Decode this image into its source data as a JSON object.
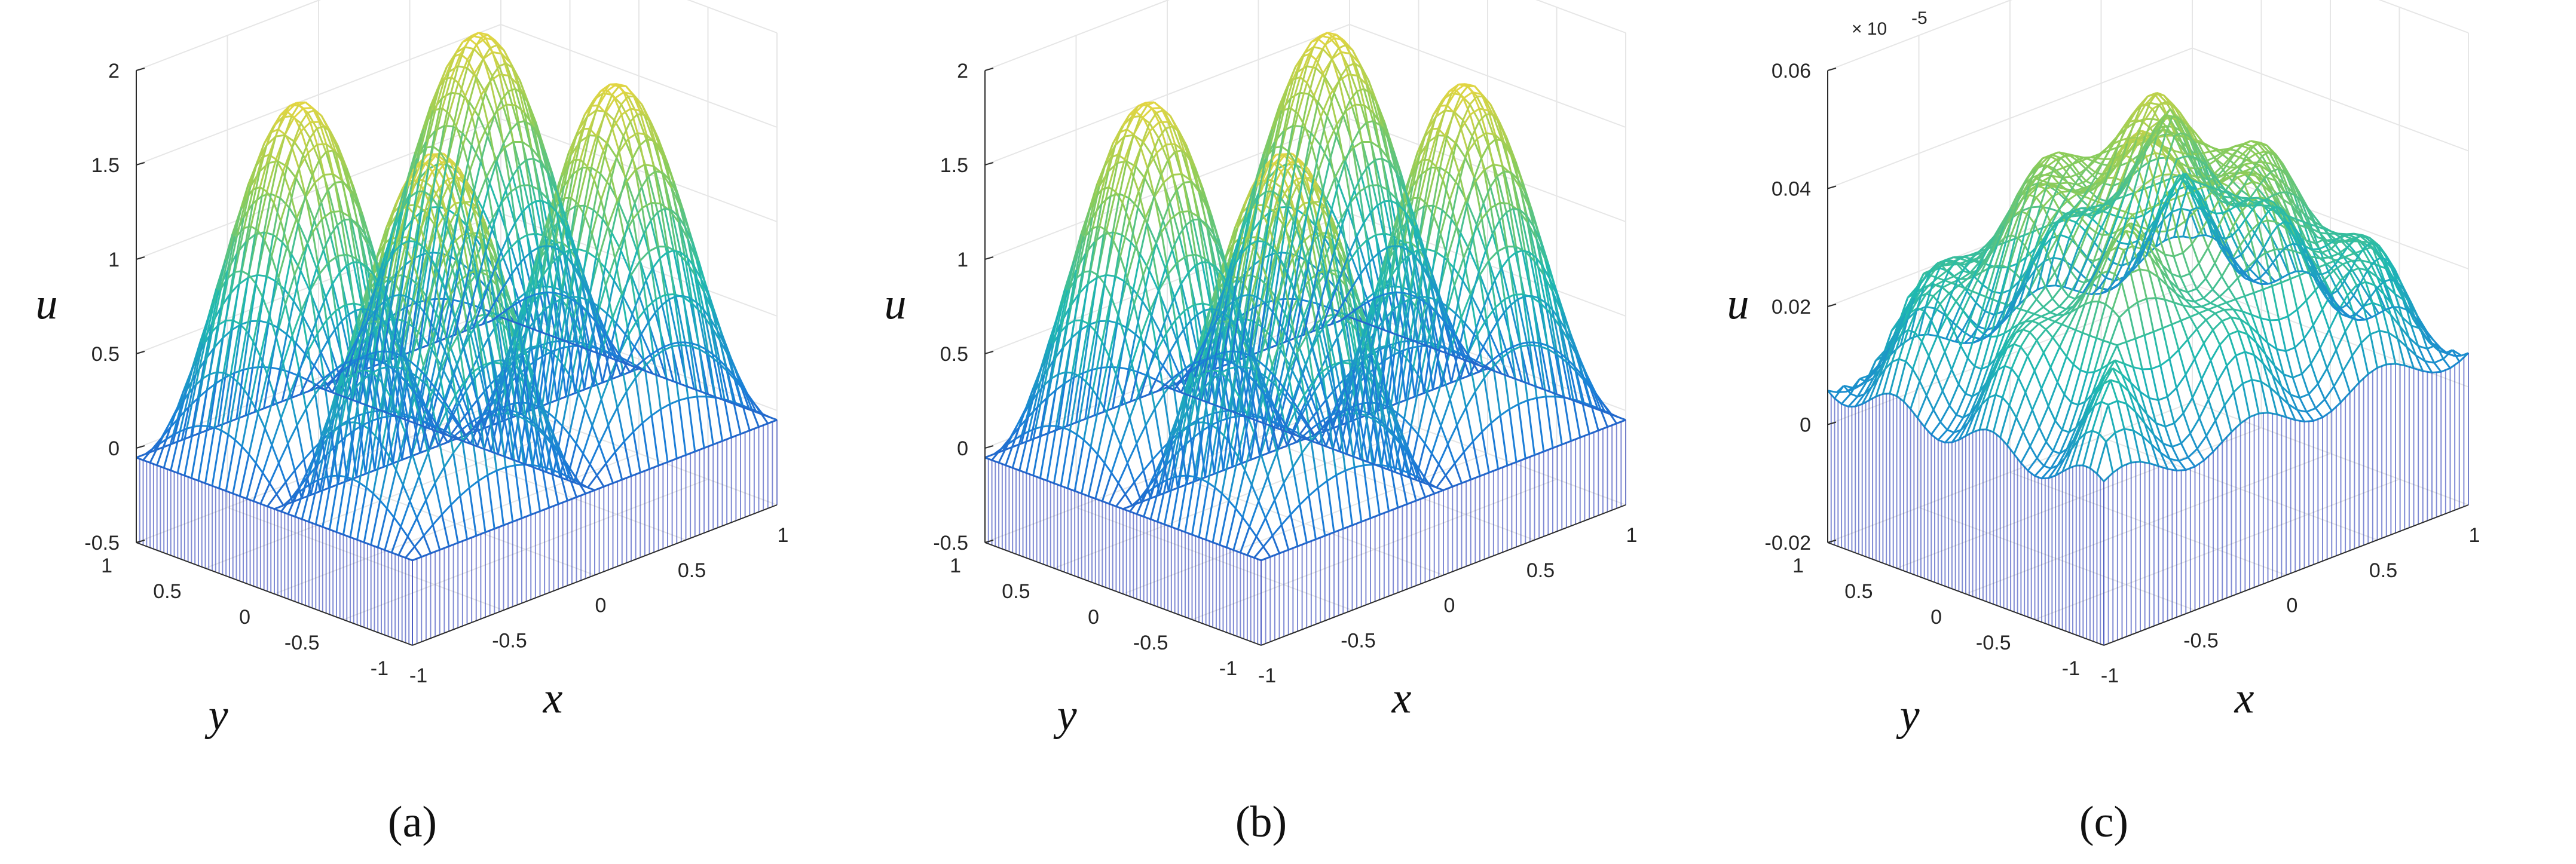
{
  "chart_data": [
    {
      "type": "surface",
      "caption": "(a)",
      "xlabel": "x",
      "ylabel": "y",
      "zlabel": "u",
      "xlim": [
        -1,
        1
      ],
      "ylim": [
        -1,
        1
      ],
      "zlim": [
        -0.5,
        2
      ],
      "xticks": [
        "-1",
        "-0.5",
        "0",
        "0.5",
        "1"
      ],
      "yticks": [
        "-1",
        "-0.5",
        "0",
        "0.5",
        "1"
      ],
      "zticks": [
        "-0.5",
        "0",
        "0.5",
        "1",
        "1.5",
        "2"
      ],
      "zticks_values": [
        -0.5,
        0,
        0.5,
        1,
        1.5,
        2
      ],
      "z_multiplier": "",
      "surface": "sin(2πx)·sin(2πy) shaped bumps, peak ≈ 1.9",
      "z_peak": 1.9,
      "grid": true
    },
    {
      "type": "surface",
      "caption": "(b)",
      "xlabel": "x",
      "ylabel": "y",
      "zlabel": "u",
      "xlim": [
        -1,
        1
      ],
      "ylim": [
        -1,
        1
      ],
      "zlim": [
        -0.5,
        2
      ],
      "xticks": [
        "-1",
        "-0.5",
        "0",
        "0.5",
        "1"
      ],
      "yticks": [
        "-1",
        "-0.5",
        "0",
        "0.5",
        "1"
      ],
      "zticks": [
        "-0.5",
        "0",
        "0.5",
        "1",
        "1.5",
        "2"
      ],
      "zticks_values": [
        -0.5,
        0,
        0.5,
        1,
        1.5,
        2
      ],
      "z_multiplier": "",
      "surface": "same as (a)",
      "z_peak": 1.9,
      "grid": true
    },
    {
      "type": "surface",
      "caption": "(c)",
      "xlabel": "x",
      "ylabel": "y",
      "zlabel": "u",
      "xlim": [
        -1,
        1
      ],
      "ylim": [
        -1,
        1
      ],
      "zlim": [
        -0.02,
        0.06
      ],
      "xticks": [
        "-1",
        "-0.5",
        "0",
        "0.5",
        "1"
      ],
      "yticks": [
        "-1",
        "-0.5",
        "0",
        "0.5",
        "1"
      ],
      "zticks": [
        "-0.02",
        "0",
        "0.02",
        "0.04",
        "0.06"
      ],
      "zticks_values": [
        -0.02,
        0,
        0.02,
        0.04,
        0.06
      ],
      "z_multiplier": "× 10",
      "z_multiplier_exp": "-5",
      "surface": "error surface, dome shaped, max ≈ 0.06e-5",
      "z_peak": 0.06,
      "grid": true
    }
  ],
  "colors": {
    "parula_low": "#3e26a8",
    "parula_mid1": "#1a7fd8",
    "parula_mid2": "#1fb9b0",
    "parula_mid3": "#8ccc5a",
    "parula_high": "#f9d83c",
    "grid": "#e6e6e6",
    "axis": "#2b2b2b"
  }
}
